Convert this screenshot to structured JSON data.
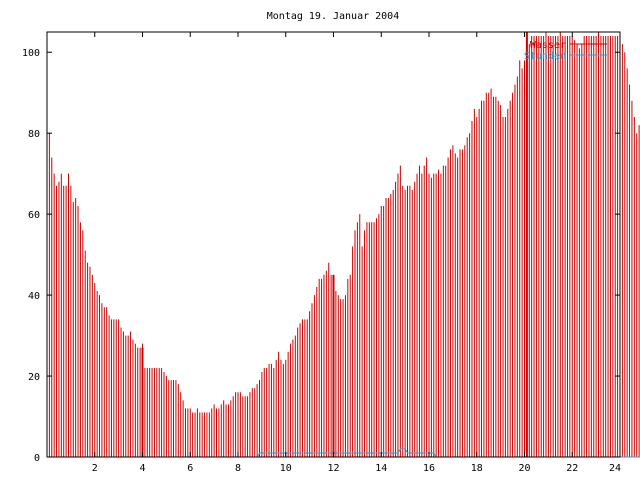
{
  "chart_data": {
    "type": "bar",
    "title": "Montag 19. Januar 2004",
    "xlabel": "",
    "ylabel": "",
    "xlim": [
      0,
      24
    ],
    "ylim": [
      0,
      105
    ],
    "x_ticks": [
      2,
      4,
      6,
      8,
      10,
      12,
      14,
      16,
      18,
      20,
      22,
      24
    ],
    "x_tick_labels": [
      "2",
      "4",
      "6",
      "8",
      "10",
      "12",
      "14",
      "16",
      "18",
      "20",
      "22",
      "24"
    ],
    "y_ticks": [
      0,
      20,
      40,
      60,
      80,
      100
    ],
    "y_tick_labels": [
      "0",
      "20",
      "40",
      "60",
      "80",
      "100"
    ],
    "grid": false,
    "legend_position": "top-right",
    "series": [
      {
        "name": "Wasser",
        "color": "#cc0000",
        "step_hours": 0.1,
        "values": [
          84,
          80,
          74,
          70,
          67,
          68,
          70,
          67,
          67,
          70,
          67,
          63,
          64,
          62,
          58,
          56,
          51,
          48,
          47,
          45,
          43,
          41,
          40,
          38,
          37,
          37,
          35,
          34,
          34,
          34,
          34,
          32,
          31,
          30,
          30,
          31,
          29,
          28,
          27,
          27,
          28,
          22,
          22,
          22,
          22,
          22,
          22,
          22,
          22,
          21,
          20,
          19,
          19,
          19,
          19,
          18,
          16,
          14,
          12,
          12,
          12,
          11,
          11,
          12,
          11,
          11,
          11,
          11,
          11,
          12,
          13,
          12,
          12,
          13,
          14,
          13,
          13,
          14,
          15,
          16,
          16,
          16,
          15,
          15,
          15,
          16,
          17,
          17,
          18,
          19,
          21,
          22,
          22,
          23,
          23,
          22,
          24,
          26,
          24,
          23,
          24,
          26,
          28,
          29,
          30,
          32,
          33,
          34,
          34,
          34,
          36,
          38,
          40,
          42,
          44,
          44,
          45,
          46,
          48,
          45,
          42,
          41,
          40,
          39,
          39,
          40,
          44,
          45,
          52,
          56,
          58,
          60,
          52,
          56,
          58,
          58,
          58,
          58,
          59,
          60,
          62,
          62,
          64,
          64,
          65,
          66,
          68,
          70,
          72,
          67,
          66,
          67,
          67,
          66,
          68,
          70,
          72,
          70,
          72,
          74,
          70,
          69,
          70,
          70,
          71,
          70,
          72,
          72,
          74,
          76,
          77,
          75,
          74,
          76,
          76,
          77,
          79,
          80,
          83,
          86,
          84,
          86,
          88,
          88,
          90,
          90,
          91,
          89,
          89,
          88,
          87,
          84,
          84,
          86,
          88,
          90,
          92,
          94,
          98,
          96,
          98,
          100,
          102,
          104,
          104,
          104,
          104,
          104,
          104,
          105,
          104,
          104,
          104,
          104,
          104,
          105,
          104,
          104,
          104,
          104,
          104,
          103,
          102,
          101,
          102,
          104,
          104,
          104,
          104,
          104,
          104,
          105,
          104,
          104,
          104,
          104,
          104,
          104,
          104,
          104,
          104,
          102,
          100,
          96,
          92,
          88,
          84,
          80,
          82,
          81
        ]
      },
      {
        "name": "Stunden",
        "color": "#3399cc",
        "step_hours": 0.1,
        "values": [
          0,
          0,
          0,
          0,
          0,
          0,
          0,
          0,
          0,
          0,
          0,
          0,
          0,
          0,
          0,
          0,
          0,
          0,
          0,
          0,
          0,
          0,
          0,
          0,
          0,
          0,
          0,
          0,
          0,
          0,
          0,
          0,
          0,
          0,
          0,
          0,
          0,
          0,
          0,
          0,
          0,
          0,
          0,
          0,
          0,
          0,
          0,
          0,
          0,
          0,
          0,
          0,
          0,
          0,
          0,
          0,
          0,
          0,
          0,
          0,
          0,
          0,
          0,
          0,
          0,
          0,
          0,
          0,
          0,
          0,
          0,
          0,
          0,
          0,
          0,
          0,
          0,
          0,
          0,
          0,
          0,
          0,
          0,
          0,
          0,
          0,
          0,
          0,
          0,
          1,
          1,
          1,
          1,
          1,
          1,
          1,
          1,
          1,
          1,
          1,
          1,
          1,
          1,
          1,
          1,
          1,
          1,
          1,
          1,
          1,
          1,
          1,
          1,
          1,
          1,
          1,
          1,
          1,
          1,
          1,
          1,
          1,
          1,
          1,
          1,
          1,
          1,
          1,
          1,
          1,
          1,
          1,
          1,
          1,
          1,
          1,
          1,
          1,
          1,
          1,
          1,
          1,
          1,
          1,
          1,
          1,
          1,
          1,
          2,
          2,
          2,
          1,
          1,
          1,
          1,
          1,
          1,
          1,
          1,
          1,
          1,
          1,
          1,
          0,
          0,
          0,
          0,
          0,
          0,
          0,
          0,
          0,
          0,
          0,
          0,
          0,
          0,
          0,
          0,
          0,
          0,
          0,
          0,
          0,
          0,
          0,
          0,
          0,
          0,
          0,
          0,
          0,
          0,
          0,
          0,
          0,
          0,
          0,
          0,
          0,
          0,
          0,
          0,
          0,
          0,
          0,
          0,
          0,
          0,
          0,
          0,
          0,
          0,
          0,
          0,
          0,
          0,
          0,
          0,
          0,
          0,
          0,
          0,
          0,
          0,
          0,
          0,
          0,
          0,
          0,
          0,
          0,
          0,
          0,
          0,
          0,
          0,
          0,
          0,
          0,
          0,
          0,
          0,
          0,
          0,
          0,
          0,
          0,
          0,
          0,
          0,
          0,
          0
        ]
      }
    ],
    "markers": [
      {
        "x": 4,
        "y": 27
      },
      {
        "x": 12,
        "y": 45
      },
      {
        "x": 20.1,
        "y": 105
      }
    ]
  }
}
